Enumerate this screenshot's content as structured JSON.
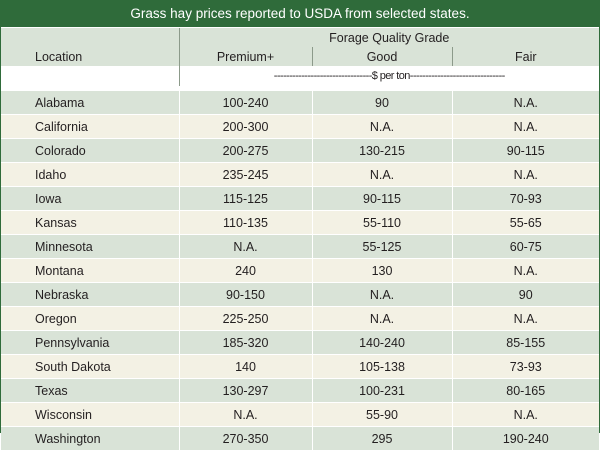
{
  "table": {
    "title": "Grass hay prices reported to USDA from selected states.",
    "group_header": "Forage Quality Grade",
    "columns": [
      "Location",
      "Premium+",
      "Good",
      "Fair"
    ],
    "units_row": "--------------------------------$ per ton-------------------------------",
    "rows": [
      {
        "location": "Alabama",
        "premium": "100-240",
        "good": "90",
        "fair": "N.A."
      },
      {
        "location": "California",
        "premium": "200-300",
        "good": "N.A.",
        "fair": "N.A."
      },
      {
        "location": "Colorado",
        "premium": "200-275",
        "good": "130-215",
        "fair": "90-115"
      },
      {
        "location": "Idaho",
        "premium": "235-245",
        "good": "N.A.",
        "fair": "N.A."
      },
      {
        "location": "Iowa",
        "premium": "115-125",
        "good": "90-115",
        "fair": "70-93"
      },
      {
        "location": "Kansas",
        "premium": "110-135",
        "good": "55-110",
        "fair": "55-65"
      },
      {
        "location": "Minnesota",
        "premium": "N.A.",
        "good": "55-125",
        "fair": "60-75"
      },
      {
        "location": "Montana",
        "premium": "240",
        "good": "130",
        "fair": "N.A."
      },
      {
        "location": "Nebraska",
        "premium": "90-150",
        "good": "N.A.",
        "fair": "90"
      },
      {
        "location": "Oregon",
        "premium": "225-250",
        "good": "N.A.",
        "fair": "N.A."
      },
      {
        "location": "Pennsylvania",
        "premium": "185-320",
        "good": "140-240",
        "fair": "85-155"
      },
      {
        "location": "South Dakota",
        "premium": "140",
        "good": "105-138",
        "fair": "73-93"
      },
      {
        "location": "Texas",
        "premium": "130-297",
        "good": "100-231",
        "fair": "80-165"
      },
      {
        "location": "Wisconsin",
        "premium": "N.A.",
        "good": "55-90",
        "fair": "N.A."
      },
      {
        "location": "Washington",
        "premium": "270-350",
        "good": "295",
        "fair": "190-240"
      }
    ]
  },
  "colors": {
    "title_bar": "#2f6b3a",
    "band_green": "#d9e3d7",
    "band_cream": "#f3f1e4"
  }
}
